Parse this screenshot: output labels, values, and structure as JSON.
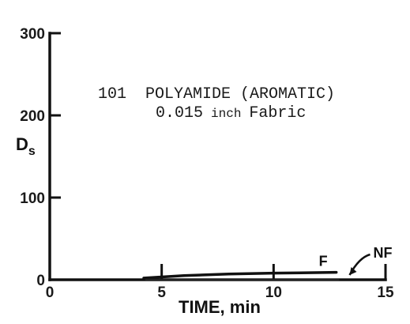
{
  "chart_data": {
    "type": "line",
    "title": "",
    "xlabel": "TIME, min",
    "ylabel_main": "D",
    "ylabel_sub": "s",
    "xlim": [
      0,
      15
    ],
    "ylim": [
      0,
      300
    ],
    "x_ticks": [
      "0",
      "5",
      "10",
      "15"
    ],
    "y_ticks": [
      "0",
      "100",
      "200",
      "300"
    ],
    "annotation": {
      "line1": "101  POLYAMIDE (AROMATIC)",
      "line2_prefix": "0.015",
      "line2_unit": "inch",
      "line2_suffix": "Fabric"
    },
    "series": [
      {
        "name": "F",
        "x": [
          4.2,
          6.0,
          8.0,
          10.0,
          12.8
        ],
        "y": [
          2,
          5,
          7,
          8,
          9
        ]
      },
      {
        "name": "NF",
        "x": [
          4.3,
          7.0,
          10.0,
          12.9
        ],
        "y": [
          0,
          0,
          0,
          0
        ]
      }
    ],
    "grid": false
  }
}
